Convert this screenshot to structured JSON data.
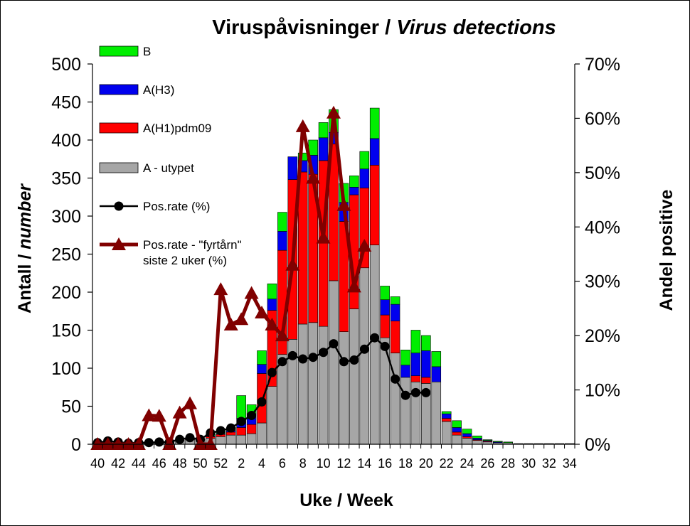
{
  "chart_data": {
    "type": "bar",
    "stacked": true,
    "title_main": "Viruspåvisninger / ",
    "title_italic": "Virus detections",
    "xlabel": "Uke / Week",
    "ylabel_main": "Antall / ",
    "ylabel_italic": "number",
    "y2label": "Andel positive",
    "ylim": [
      0,
      500
    ],
    "y2lim": [
      0,
      70
    ],
    "yticks": [
      "0",
      "50",
      "100",
      "150",
      "200",
      "250",
      "300",
      "350",
      "400",
      "450",
      "500"
    ],
    "y2ticks": [
      "0%",
      "10%",
      "20%",
      "30%",
      "40%",
      "50%",
      "60%",
      "70%"
    ],
    "grid": false,
    "legend_position": "top-left",
    "colors": {
      "B": "#00ee00",
      "A(H3)": "#0000ee",
      "A(H1)pdm09": "#ff0000",
      "A - utypet": "#a6a6a6",
      "rate": "#000000",
      "sentinel": "#800000"
    },
    "categories": [
      "40",
      "41",
      "42",
      "43",
      "44",
      "45",
      "46",
      "47",
      "48",
      "49",
      "50",
      "51",
      "52",
      "1",
      "2",
      "3",
      "4",
      "5",
      "6",
      "7",
      "8",
      "9",
      "10",
      "11",
      "12",
      "13",
      "14",
      "15",
      "16",
      "17",
      "18",
      "19",
      "20",
      "21",
      "22",
      "23",
      "24",
      "25",
      "26",
      "27",
      "28",
      "29",
      "30",
      "31",
      "32",
      "33",
      "34"
    ],
    "x_tick_labels": [
      "40",
      "",
      "42",
      "",
      "44",
      "",
      "46",
      "",
      "48",
      "",
      "50",
      "",
      "52",
      "",
      "2",
      "",
      "4",
      "",
      "6",
      "",
      "8",
      "",
      "10",
      "",
      "12",
      "",
      "14",
      "",
      "16",
      "",
      "18",
      "",
      "20",
      "",
      "22",
      "",
      "24",
      "",
      "26",
      "",
      "28",
      "",
      "30",
      "",
      "32",
      "",
      "34"
    ],
    "series": [
      {
        "name": "A - utypet",
        "values": [
          2,
          2,
          2,
          1,
          2,
          2,
          2,
          3,
          5,
          6,
          6,
          8,
          10,
          12,
          12,
          14,
          28,
          76,
          118,
          138,
          158,
          160,
          155,
          215,
          148,
          178,
          232,
          262,
          140,
          120,
          88,
          82,
          80,
          82,
          30,
          12,
          8,
          5,
          3,
          2,
          2,
          1,
          1,
          1,
          1,
          1,
          1
        ]
      },
      {
        "name": "A(H1)pdm09",
        "values": [
          0,
          0,
          0,
          0,
          0,
          0,
          0,
          0,
          1,
          1,
          1,
          2,
          3,
          4,
          10,
          12,
          65,
          100,
          137,
          210,
          200,
          195,
          218,
          180,
          145,
          150,
          105,
          105,
          30,
          42,
          0,
          8,
          8,
          0,
          4,
          4,
          2,
          1,
          1,
          0,
          0,
          0,
          0,
          0,
          0,
          0,
          0
        ]
      },
      {
        "name": "A(H3)",
        "values": [
          0,
          0,
          0,
          0,
          0,
          0,
          0,
          0,
          0,
          0,
          0,
          1,
          1,
          2,
          12,
          14,
          12,
          15,
          25,
          30,
          15,
          25,
          30,
          15,
          25,
          10,
          25,
          35,
          20,
          22,
          16,
          30,
          35,
          20,
          6,
          6,
          4,
          2,
          1,
          1,
          0,
          0,
          0,
          0,
          0,
          0,
          0
        ]
      },
      {
        "name": "B",
        "values": [
          0,
          0,
          0,
          0,
          0,
          0,
          0,
          0,
          0,
          0,
          0,
          2,
          3,
          4,
          30,
          12,
          18,
          20,
          25,
          0,
          10,
          20,
          20,
          30,
          25,
          15,
          23,
          40,
          18,
          10,
          20,
          30,
          20,
          20,
          3,
          9,
          6,
          3,
          1,
          1,
          1,
          0,
          0,
          0,
          0,
          0,
          0
        ]
      }
    ],
    "line_series": [
      {
        "name": "Pos.rate (%)",
        "axis": "right",
        "marker": "circle",
        "values": [
          0.3,
          0.6,
          0.4,
          0.2,
          0.3,
          0.3,
          0.4,
          0.4,
          0.9,
          1.2,
          0.9,
          2.1,
          2.5,
          3.0,
          4.2,
          5.3,
          7.8,
          13.2,
          15.2,
          16.3,
          15.7,
          16.0,
          16.9,
          18.5,
          15.2,
          15.5,
          17.5,
          19.6,
          18.0,
          12.0,
          9.0,
          9.5,
          9.5,
          null,
          null,
          null,
          null,
          null,
          null,
          null,
          null,
          null,
          null,
          null,
          null,
          null,
          null
        ]
      },
      {
        "name": "Pos.rate - \"fyrtårn\" siste 2 uker (%)",
        "axis": "right",
        "marker": "triangle",
        "values": [
          0,
          0,
          0,
          0,
          0,
          5.3,
          5.2,
          0,
          5.8,
          7.5,
          0,
          0,
          28.5,
          22.0,
          23.0,
          27.8,
          24.2,
          22.0,
          20.0,
          33.0,
          58.5,
          49.0,
          38.0,
          61.0,
          44.0,
          29.0,
          36.5,
          null,
          null,
          null,
          null,
          null,
          null,
          null,
          null,
          null,
          null,
          null,
          null,
          null,
          null,
          null,
          null,
          null,
          null,
          null,
          null
        ]
      }
    ],
    "legend_entries": [
      {
        "key": "B",
        "label": "B"
      },
      {
        "key": "A(H3)",
        "label": "A(H3)"
      },
      {
        "key": "A(H1)pdm09",
        "label": "A(H1)pdm09"
      },
      {
        "key": "A - utypet",
        "label": "A - utypet"
      },
      {
        "key": "rate",
        "label": "Pos.rate (%)"
      },
      {
        "key": "sentinel",
        "label_line1": "Pos.rate - \"fyrtårn\"",
        "label_line2": "siste 2 uker (%)"
      }
    ]
  }
}
